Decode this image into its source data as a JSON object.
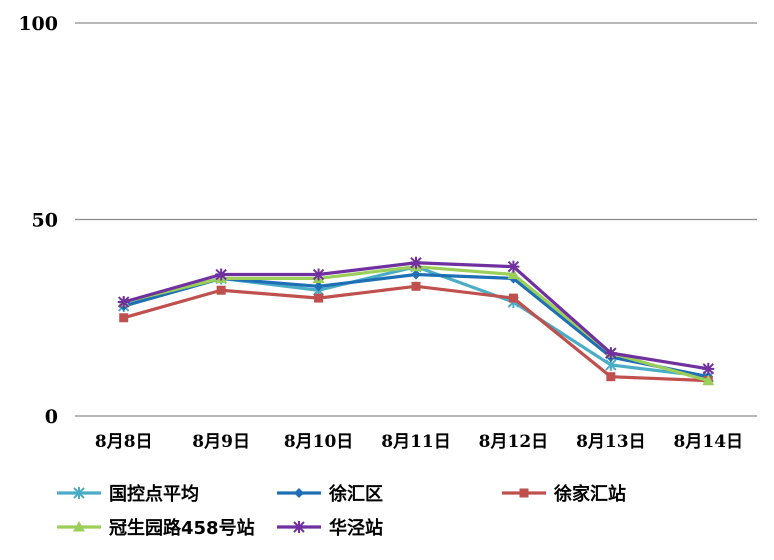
{
  "chart_data": {
    "type": "line",
    "categories": [
      "8月8日",
      "8月9日",
      "8月10日",
      "8月11日",
      "8月12日",
      "8月13日",
      "8月14日"
    ],
    "ylim": [
      0,
      100
    ],
    "yticks": [
      "0",
      "50",
      "100"
    ],
    "grid": true,
    "legend_position": "bottom",
    "series": [
      {
        "name": "国控点平均",
        "color": "#4BACC6",
        "marker": "asterisk",
        "values": [
          28,
          35,
          32,
          38,
          29,
          13,
          10
        ]
      },
      {
        "name": "徐汇区",
        "color": "#1F6FB5",
        "marker": "diamond",
        "values": [
          28,
          35,
          33,
          36,
          35,
          15,
          10
        ]
      },
      {
        "name": "徐家汇站",
        "color": "#C0504D",
        "marker": "square",
        "values": [
          25,
          32,
          30,
          33,
          30,
          10,
          9
        ]
      },
      {
        "name": "冠生园路458号站",
        "color": "#9BCF5A",
        "marker": "triangle",
        "values": [
          29,
          35,
          35,
          38,
          36,
          16,
          9
        ]
      },
      {
        "name": "华泾站",
        "color": "#7030A0",
        "marker": "star",
        "values": [
          29,
          36,
          36,
          39,
          38,
          16,
          12
        ]
      }
    ]
  }
}
